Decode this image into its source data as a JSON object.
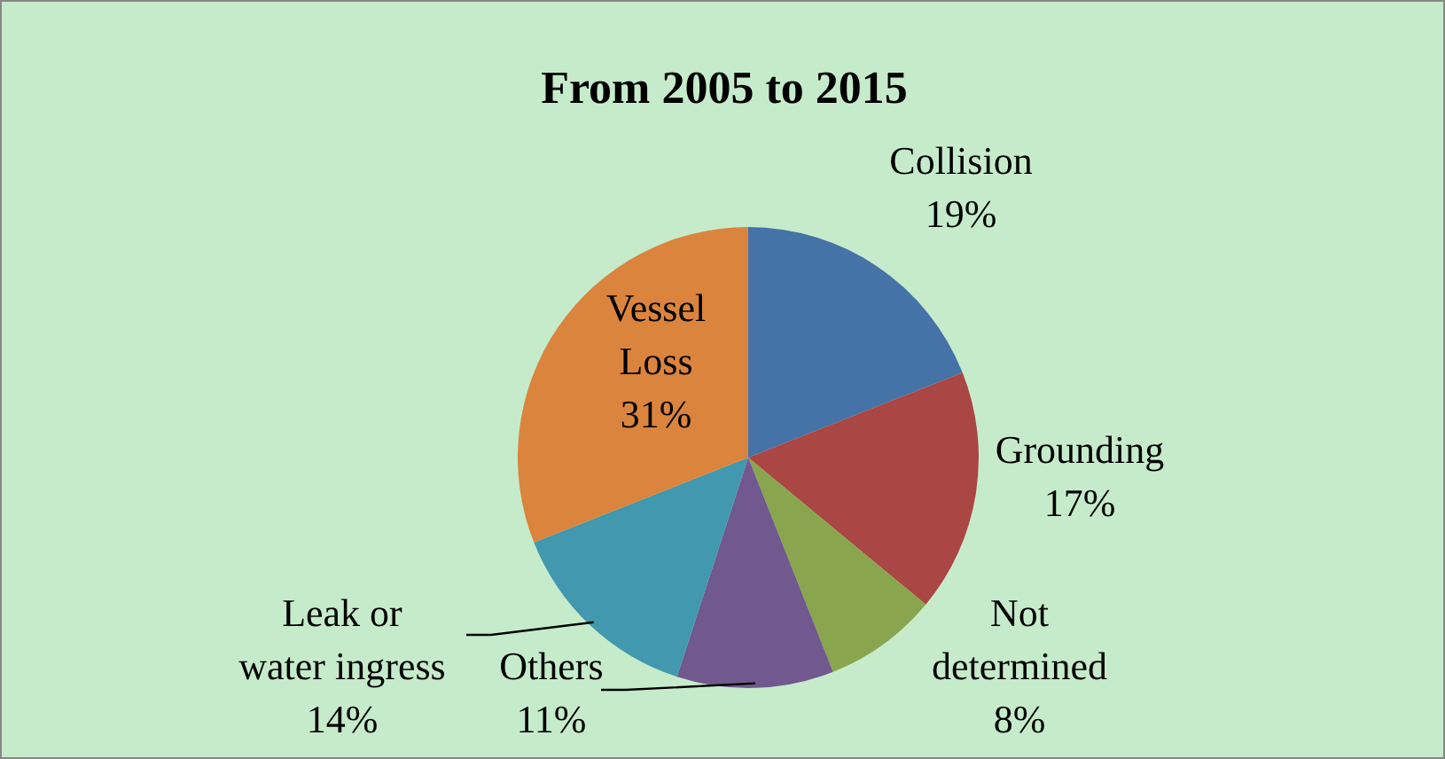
{
  "chart_data": {
    "type": "pie",
    "title": "From 2005 to 2015",
    "categories": [
      "Collision",
      "Grounding",
      "Not determined",
      "Others",
      "Leak or water ingress",
      "Vessel Loss"
    ],
    "values": [
      19,
      17,
      8,
      11,
      14,
      31
    ],
    "value_labels": [
      "19%",
      "17%",
      "8%",
      "11%",
      "14%",
      "31%"
    ],
    "colors": [
      "#4572a7",
      "#aa4643",
      "#89a54e",
      "#71588f",
      "#4198af",
      "#db843d"
    ],
    "legend": false
  }
}
